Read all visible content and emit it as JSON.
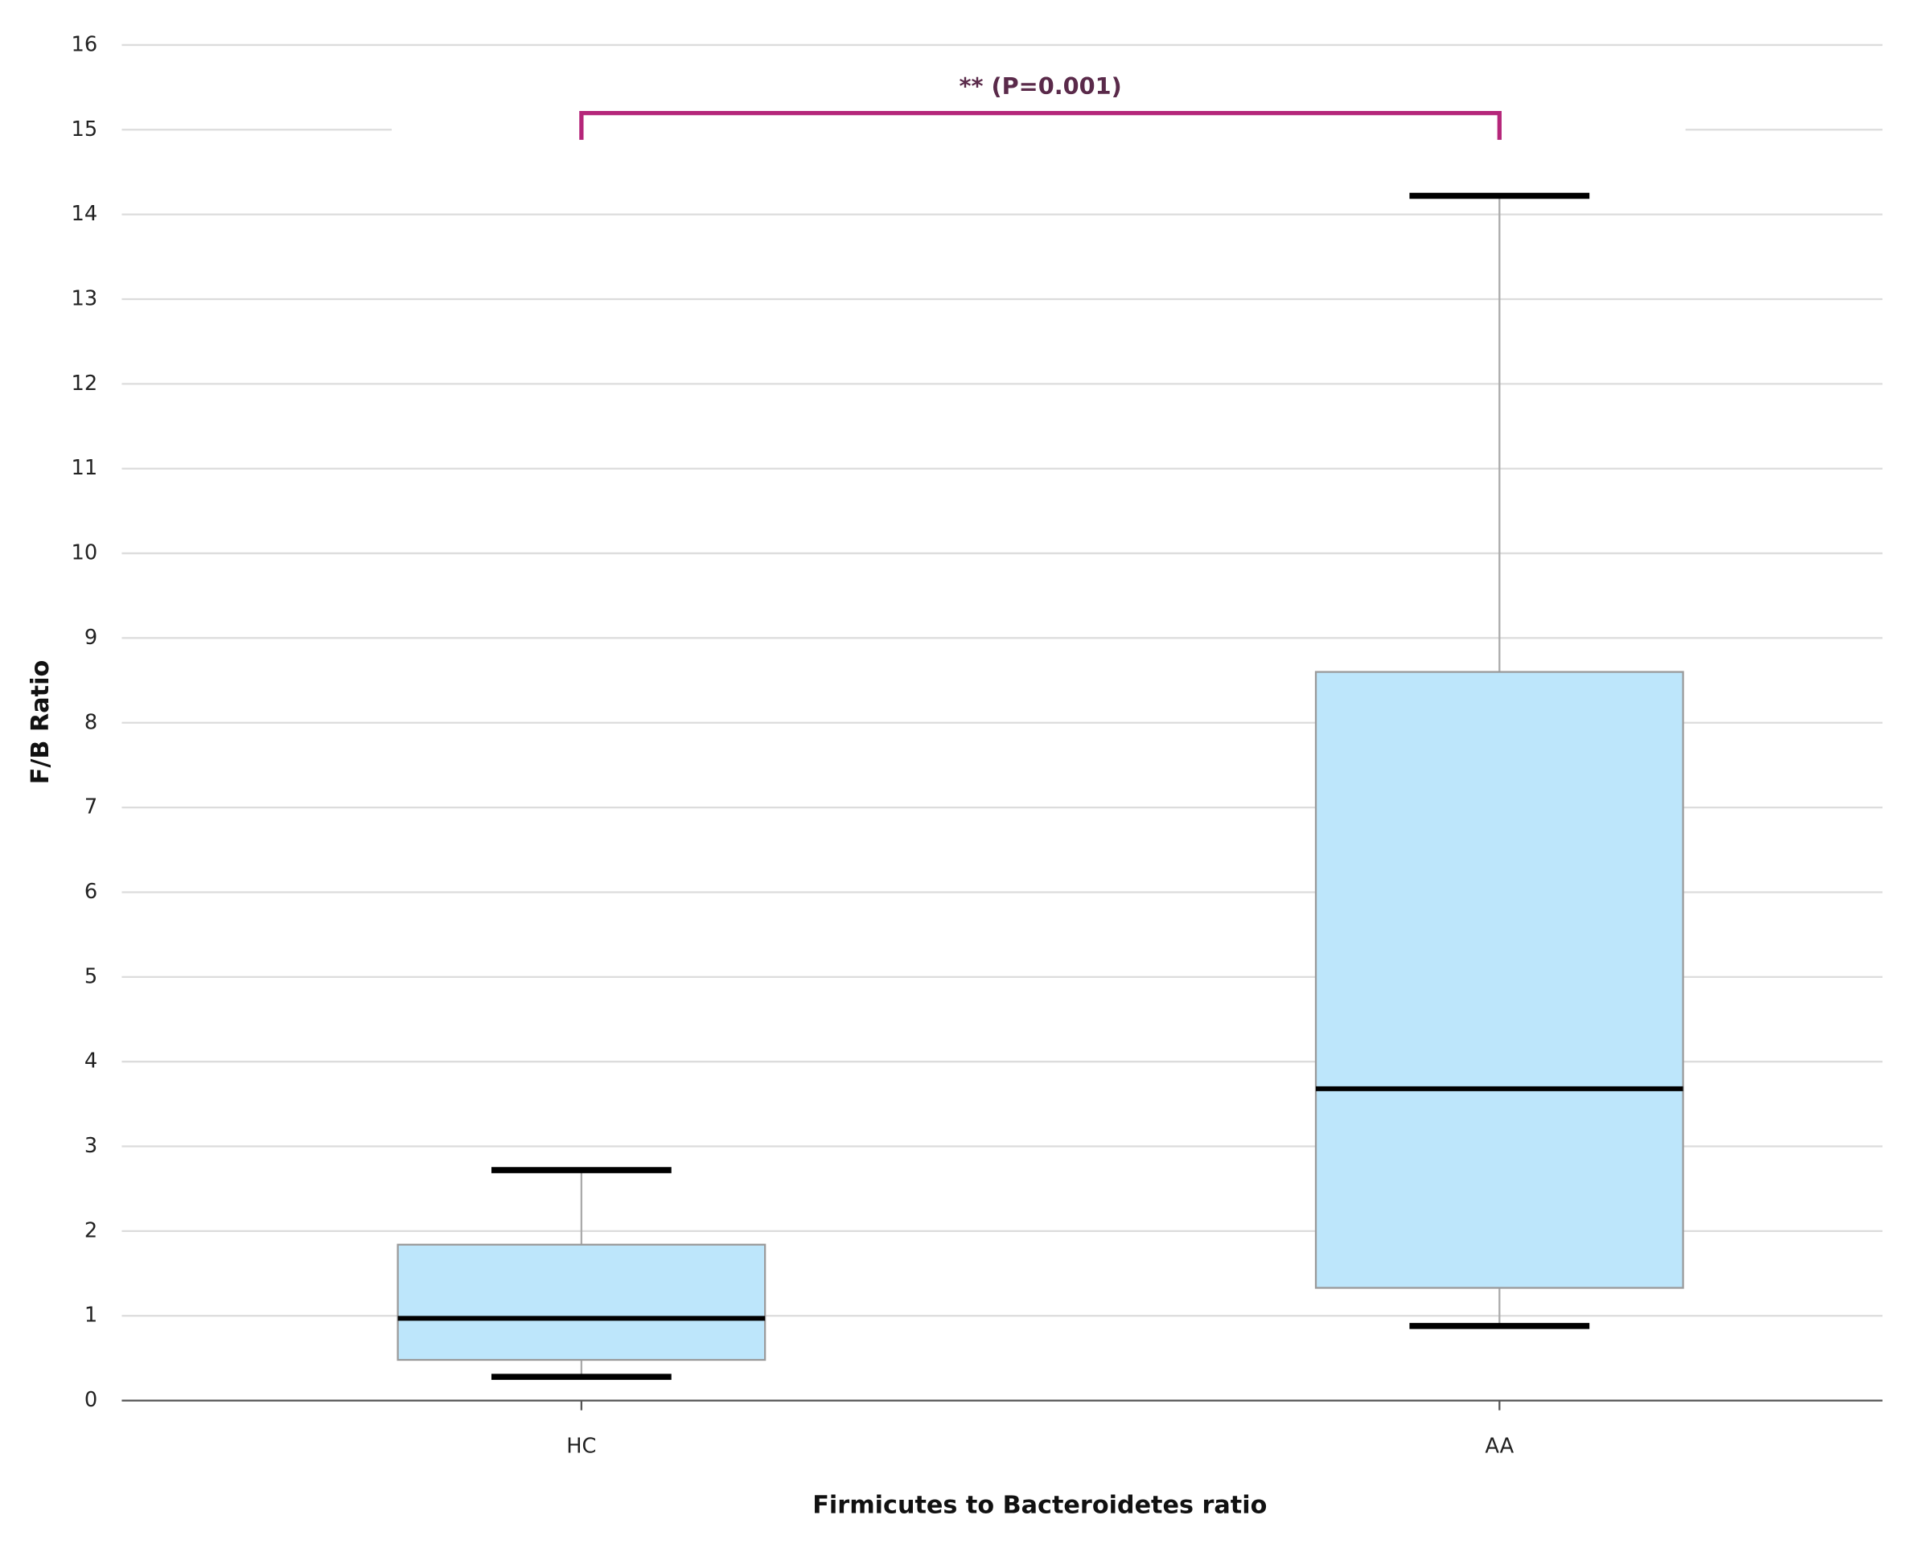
{
  "chart_data": {
    "type": "box",
    "x_label": "Firmicutes to Bacteroidetes ratio",
    "y_label": "F/B Ratio",
    "categories": [
      "HC",
      "AA"
    ],
    "min": [
      0.28,
      0.88
    ],
    "q1": [
      0.48,
      1.33
    ],
    "median": [
      0.97,
      3.68
    ],
    "q3": [
      1.84,
      8.6
    ],
    "max": [
      2.72,
      14.22
    ],
    "color": "#bde6fb",
    "ylim": [
      0,
      16
    ],
    "yticks": [
      0,
      1,
      2,
      3,
      4,
      5,
      6,
      7,
      8,
      9,
      10,
      11,
      12,
      13,
      14,
      15,
      16
    ],
    "grid": true,
    "annotation": {
      "text": "** (P=0.001)",
      "color": "#b5267a"
    }
  }
}
